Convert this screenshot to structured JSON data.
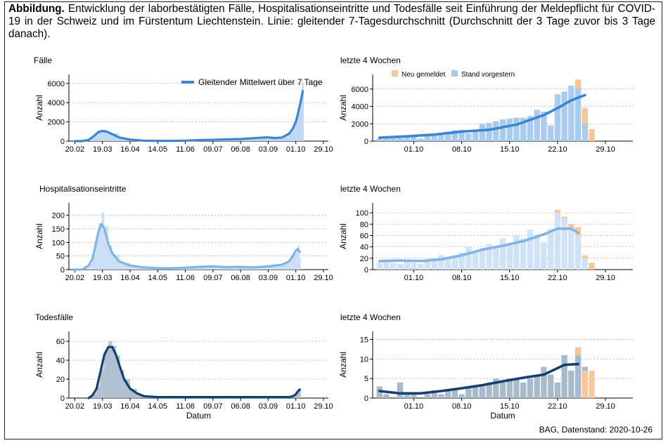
{
  "caption": {
    "bold": "Abbildung.",
    "text": "Entwicklung der laborbestätigten Fälle, Hospitalisationseintritte und Todesfälle seit Einführung der Meldepflicht für COVID-19 in der Schweiz und im Fürstentum Liechtenstein. Linie: gleitender 7-Tagesdurchschnitt (Durchschnitt der 3 Tage zuvor bis 3 Tage danach)."
  },
  "source": "BAG, Datenstand: 2020-10-26",
  "colors": {
    "faelle_line": "#3a86d0",
    "faelle_bar": "#bcd6f0",
    "hosp_line": "#80b4e4",
    "hosp_bar": "#c8dcf2",
    "tod_line": "#14406e",
    "tod_bar": "#a9bccf",
    "neu_gemeldet": "#f7c699",
    "stand_vorgestern_faelle": "#a9cbee",
    "stand_vorgestern_hosp": "#cfe2f6",
    "stand_vorgestern_tod": "#a9bacc"
  },
  "chart_data": [
    {
      "id": "faelle_full",
      "type": "area",
      "title": "Fälle",
      "ylabel": "Anzahl",
      "xlabel": "",
      "ylim": [
        0,
        6500
      ],
      "yticks": [
        0,
        2000,
        4000,
        6000
      ],
      "xticks": [
        "20.02",
        "19.03",
        "16.04",
        "14.05",
        "11.06",
        "09.07",
        "06.08",
        "03.09",
        "01.10",
        "29.10"
      ],
      "legend": "Gleitender Mittelwert über 7 Tage",
      "legend_position": "top-right",
      "x": [
        0,
        7,
        14,
        19,
        24,
        28,
        32,
        38,
        45,
        56,
        70,
        84,
        98,
        112,
        126,
        140,
        154,
        168,
        182,
        189,
        196,
        203,
        210,
        217,
        221,
        224,
        226,
        228,
        230,
        231
      ],
      "line": [
        0,
        0,
        120,
        500,
        950,
        1060,
        1000,
        720,
        380,
        160,
        50,
        30,
        25,
        50,
        110,
        140,
        180,
        220,
        310,
        360,
        390,
        320,
        380,
        750,
        1300,
        2000,
        2800,
        3700,
        4600,
        5200
      ],
      "bars": [
        0,
        0,
        140,
        600,
        1050,
        1100,
        900,
        800,
        300,
        150,
        40,
        20,
        20,
        60,
        100,
        160,
        170,
        250,
        350,
        400,
        330,
        300,
        420,
        900,
        1400,
        2300,
        3100,
        4500,
        6500,
        5900
      ]
    },
    {
      "id": "faelle_4w",
      "type": "bar",
      "title": "letzte 4 Wochen",
      "ylabel": "Anzahl",
      "xlabel": "",
      "ylim": [
        0,
        7200
      ],
      "yticks": [
        0,
        2000,
        4000,
        6000
      ],
      "xticks": [
        "01.10",
        "08.10",
        "15.10",
        "22.10",
        "29.10"
      ],
      "legend": [
        "Neu gemeldet",
        "Stand vorgestern"
      ],
      "legend_position": "top-left",
      "days": 31,
      "x_first_tick_day": 5,
      "stand_vorgestern": [
        300,
        400,
        450,
        500,
        550,
        700,
        300,
        750,
        850,
        1000,
        1100,
        1250,
        1300,
        900,
        1300,
        2000,
        2100,
        2300,
        2500,
        2600,
        2700,
        2700,
        2900,
        3600,
        3400,
        1800,
        5400,
        5700,
        6400,
        6100,
        2000
      ],
      "neu_gemeldet": [
        0,
        0,
        0,
        0,
        0,
        0,
        0,
        0,
        0,
        0,
        0,
        0,
        0,
        0,
        0,
        0,
        0,
        0,
        0,
        0,
        0,
        0,
        0,
        0,
        0,
        0,
        0,
        0,
        0,
        1000,
        1800
      ],
      "extra_neu_days": [
        [
          31,
          1400
        ]
      ],
      "line_x": [
        0,
        4,
        8,
        12,
        16,
        20,
        24,
        26,
        28,
        30
      ],
      "line": [
        400,
        550,
        750,
        1100,
        1300,
        1900,
        3000,
        3800,
        4700,
        5300
      ]
    },
    {
      "id": "hosp_full",
      "type": "area",
      "title": "Hospitalisationseintritte",
      "ylabel": "Anzahl",
      "xlabel": "",
      "ylim": [
        0,
        230
      ],
      "yticks": [
        0,
        50,
        100,
        150,
        200
      ],
      "xticks": [
        "20.02",
        "19.03",
        "16.04",
        "14.05",
        "11.06",
        "09.07",
        "06.08",
        "03.09",
        "01.10",
        "29.10"
      ],
      "x": [
        0,
        7,
        14,
        18,
        21,
        24,
        27,
        30,
        34,
        38,
        45,
        56,
        70,
        84,
        98,
        112,
        126,
        140,
        154,
        168,
        182,
        196,
        210,
        217,
        221,
        224,
        226,
        228
      ],
      "line": [
        0,
        0,
        15,
        40,
        90,
        140,
        168,
        150,
        95,
        60,
        30,
        15,
        8,
        5,
        5,
        7,
        10,
        12,
        9,
        10,
        8,
        12,
        18,
        30,
        50,
        70,
        75,
        65
      ],
      "bars": [
        0,
        0,
        20,
        50,
        110,
        170,
        210,
        160,
        90,
        55,
        25,
        12,
        6,
        4,
        4,
        6,
        12,
        10,
        8,
        10,
        6,
        14,
        20,
        35,
        60,
        80,
        90,
        40
      ]
    },
    {
      "id": "hosp_4w",
      "type": "bar",
      "title": "letzte 4 Wochen",
      "ylabel": "Anzahl",
      "xlabel": "",
      "ylim": [
        0,
        110
      ],
      "yticks": [
        0,
        20,
        40,
        60,
        80,
        100
      ],
      "xticks": [
        "01.10",
        "08.10",
        "15.10",
        "22.10",
        "29.10"
      ],
      "days": 31,
      "x_first_tick_day": 5,
      "stand_vorgestern": [
        12,
        15,
        12,
        10,
        15,
        12,
        10,
        15,
        20,
        25,
        20,
        25,
        30,
        40,
        30,
        38,
        45,
        40,
        55,
        45,
        60,
        55,
        70,
        62,
        48,
        72,
        100,
        90,
        70,
        60,
        20
      ],
      "neu_gemeldet": [
        0,
        0,
        0,
        0,
        0,
        0,
        0,
        0,
        0,
        0,
        0,
        0,
        0,
        0,
        0,
        0,
        0,
        0,
        0,
        0,
        0,
        0,
        0,
        0,
        0,
        0,
        5,
        3,
        10,
        15,
        5
      ],
      "extra_neu_days": [
        [
          31,
          12
        ]
      ],
      "line_x": [
        0,
        3,
        6,
        9,
        12,
        15,
        18,
        21,
        24,
        26,
        28,
        29
      ],
      "line": [
        15,
        16,
        15,
        18,
        25,
        35,
        42,
        50,
        62,
        72,
        72,
        65
      ]
    },
    {
      "id": "tod_full",
      "type": "area",
      "title": "Todesfälle",
      "ylabel": "Anzahl",
      "xlabel": "Datum",
      "ylim": [
        0,
        66
      ],
      "yticks": [
        0,
        20,
        40,
        60
      ],
      "xticks": [
        "20.02",
        "19.03",
        "16.04",
        "14.05",
        "11.06",
        "09.07",
        "06.08",
        "03.09",
        "01.10",
        "29.10"
      ],
      "x": [
        14,
        18,
        22,
        26,
        30,
        34,
        38,
        42,
        46,
        50,
        56,
        63,
        70,
        84,
        98,
        112,
        126,
        140,
        154,
        168,
        182,
        196,
        210,
        217,
        221,
        224,
        226,
        228
      ],
      "line": [
        0,
        3,
        10,
        28,
        46,
        54,
        54,
        45,
        32,
        20,
        10,
        5,
        2,
        1,
        1,
        1,
        1,
        1,
        1,
        1,
        1,
        1,
        1,
        1,
        2,
        4,
        7,
        9
      ],
      "bars": [
        0,
        4,
        12,
        30,
        50,
        60,
        55,
        45,
        30,
        20,
        10,
        4,
        2,
        1,
        1,
        1,
        1,
        1,
        1,
        1,
        1,
        2,
        1,
        1,
        3,
        5,
        9,
        8
      ]
    },
    {
      "id": "tod_4w",
      "type": "bar",
      "title": "letzte 4 Wochen",
      "ylabel": "Anzahl",
      "xlabel": "Datum",
      "ylim": [
        0,
        16
      ],
      "yticks": [
        0,
        5,
        10,
        15
      ],
      "xticks": [
        "01.10",
        "08.10",
        "15.10",
        "22.10",
        "29.10"
      ],
      "days": 31,
      "x_first_tick_day": 5,
      "stand_vorgestern": [
        3,
        1,
        0,
        4,
        1,
        1,
        0,
        1,
        2,
        1,
        2,
        2,
        1,
        3,
        3,
        3,
        4,
        5,
        4,
        5,
        5,
        4,
        5,
        6,
        8,
        6,
        4,
        11,
        7,
        11,
        8
      ],
      "neu_gemeldet": [
        0,
        0,
        0,
        0,
        0,
        0,
        0,
        0,
        0,
        0,
        0,
        0,
        0,
        0,
        0,
        0,
        0,
        0,
        0,
        0,
        0,
        0,
        0,
        0,
        0,
        0,
        0,
        0,
        0,
        2,
        0
      ],
      "extra_neu_days": [
        [
          30,
          7
        ],
        [
          31,
          7
        ]
      ],
      "line_x": [
        0,
        3,
        6,
        9,
        12,
        15,
        18,
        21,
        24,
        27,
        29
      ],
      "line": [
        1.8,
        1.2,
        1.2,
        1.8,
        2.5,
        3.3,
        4.3,
        5.2,
        6.0,
        8.5,
        8.7
      ]
    }
  ]
}
